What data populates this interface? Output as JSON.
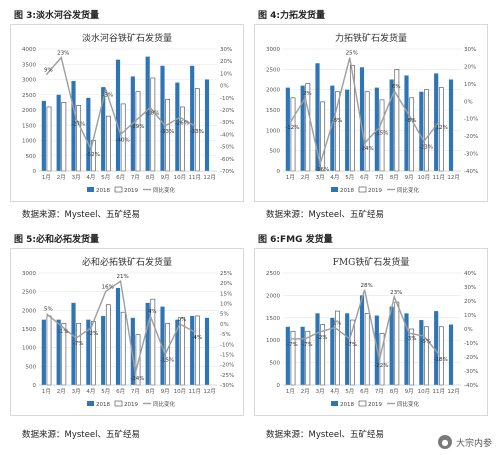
{
  "figures": [
    {
      "figure_title": "图 3:淡水河谷发货量",
      "source": "数据来源：Mysteel、五矿经易"
    },
    {
      "figure_title": "图 4:力拓发货量",
      "source": "数据来源：Mysteel、五矿经易"
    },
    {
      "figure_title": "图 5:必和必拓发货量",
      "source": "数据来源：Mysteel、五矿经易"
    },
    {
      "figure_title": "图 6:FMG 发货量",
      "source": "数据来源：Mysteel、五矿经易"
    }
  ],
  "watermark": {
    "text": "大宗内参",
    "icon": "wechat-icon"
  },
  "colors": {
    "bar2018": "#2e75b6",
    "bar2019": "#ffffff",
    "line": "#9e9e9e",
    "grid": "#e6e6e6"
  },
  "chart_data": [
    {
      "type": "bar",
      "title": "淡水河谷铁矿石发货量",
      "categories": [
        "1月",
        "2月",
        "3月",
        "4月",
        "5月",
        "6月",
        "7月",
        "8月",
        "9月",
        "10月",
        "11月",
        "12月"
      ],
      "ylim": [
        0,
        4000
      ],
      "yticks": [
        0,
        500,
        1000,
        1500,
        2000,
        2500,
        3000,
        3500,
        4000
      ],
      "y2lim": [
        -70,
        30
      ],
      "y2ticks": [
        "30%",
        "20%",
        "10%",
        "0%",
        "-10%",
        "-20%",
        "-30%",
        "-40%",
        "-50%",
        "-60%",
        "-70%"
      ],
      "series": [
        {
          "name": "2018",
          "kind": "bar",
          "values": [
            2300,
            2500,
            2950,
            2400,
            2750,
            3650,
            3100,
            3750,
            3450,
            2900,
            3450,
            3000
          ]
        },
        {
          "name": "2019",
          "kind": "bar",
          "values": [
            2100,
            2250,
            2150,
            1000,
            1800,
            2200,
            2600,
            3050,
            2350,
            2100,
            2700,
            null
          ]
        },
        {
          "name": "同比变化",
          "kind": "line",
          "axis": "right",
          "values": [
            9,
            23,
            -27,
            -52,
            -3,
            -40,
            -29,
            -18,
            -33,
            -26,
            -33,
            null
          ]
        }
      ],
      "data_labels": [
        "9%",
        "23%",
        "-27%",
        "-52%",
        "-3%",
        "-40%",
        "-29%",
        "-18%",
        "-33%",
        "-26%",
        "-33%"
      ],
      "legend": "bottom"
    },
    {
      "type": "bar",
      "title": "力拓铁矿石发货量",
      "categories": [
        "1月",
        "2月",
        "3月",
        "4月",
        "5月",
        "6月",
        "7月",
        "8月",
        "9月",
        "10月",
        "11月",
        "12月"
      ],
      "ylim": [
        0,
        3000
      ],
      "yticks": [
        0,
        500,
        1000,
        1500,
        2000,
        2500,
        3000
      ],
      "y2lim": [
        -40,
        30
      ],
      "y2ticks": [
        "30%",
        "20%",
        "10%",
        "0%",
        "-10%",
        "-20%",
        "-30%",
        "-40%"
      ],
      "series": [
        {
          "name": "2018",
          "kind": "bar",
          "values": [
            2050,
            2100,
            2650,
            2100,
            2000,
            2550,
            2050,
            2250,
            2350,
            1950,
            2400,
            2250
          ]
        },
        {
          "name": "2019",
          "kind": "bar",
          "values": [
            1800,
            2150,
            1700,
            1950,
            2600,
            1950,
            1750,
            2500,
            1800,
            2000,
            2050,
            null
          ]
        },
        {
          "name": "同比变化",
          "kind": "line",
          "axis": "right",
          "values": [
            -12,
            2,
            -36,
            -8,
            25,
            -24,
            -15,
            6,
            -8,
            -23,
            -12,
            null
          ]
        }
      ],
      "data_labels": [
        "-12%",
        "2%",
        "-36%",
        "-8%",
        "25%",
        "-24%",
        "-15%",
        "6%",
        "-8%",
        "-23%",
        "-12%"
      ],
      "legend": "bottom"
    },
    {
      "type": "bar",
      "title": "必和必拓铁矿石发货量",
      "categories": [
        "1月",
        "2月",
        "3月",
        "4月",
        "5月",
        "6月",
        "7月",
        "8月",
        "9月",
        "10月",
        "11月",
        "12月"
      ],
      "ylim": [
        0,
        3000
      ],
      "yticks": [
        0,
        500,
        1000,
        1500,
        2000,
        2500,
        3000
      ],
      "y2lim": [
        -30,
        25
      ],
      "y2ticks": [
        "25%",
        "20%",
        "15%",
        "10%",
        "5%",
        "0%",
        "-5%",
        "-10%",
        "-15%",
        "-20%",
        "-25%",
        "-30%"
      ],
      "series": [
        {
          "name": "2018",
          "kind": "bar",
          "values": [
            1750,
            1750,
            2200,
            1750,
            1850,
            2600,
            1800,
            2200,
            2100,
            1750,
            1850,
            1800
          ]
        },
        {
          "name": "2019",
          "kind": "bar",
          "values": [
            1850,
            1650,
            1650,
            1700,
            2150,
            1950,
            1350,
            2300,
            1650,
            1800,
            1850,
            null
          ]
        },
        {
          "name": "同比变化",
          "kind": "line",
          "axis": "right",
          "values": [
            5,
            -1,
            -7,
            -2,
            16,
            21,
            -24,
            4,
            -15,
            0,
            -4,
            null
          ]
        }
      ],
      "data_labels": [
        "5%",
        "-1%",
        "-7%",
        "-2%",
        "16%",
        "21%",
        "-24%",
        "4%",
        "-15%",
        "0%",
        "-4%"
      ],
      "legend": "bottom"
    },
    {
      "type": "bar",
      "title": "FMG铁矿石发货量",
      "categories": [
        "1月",
        "2月",
        "3月",
        "4月",
        "5月",
        "6月",
        "7月",
        "8月",
        "9月",
        "10月",
        "11月",
        "12月"
      ],
      "ylim": [
        0,
        2500
      ],
      "yticks": [
        0,
        500,
        1000,
        1500,
        2000,
        2500
      ],
      "y2lim": [
        -40,
        40
      ],
      "y2ticks": [
        "40%",
        "30%",
        "20%",
        "10%",
        "0%",
        "-10%",
        "-20%",
        "-30%",
        "-40%"
      ],
      "series": [
        {
          "name": "2018",
          "kind": "bar",
          "values": [
            1300,
            1300,
            1600,
            1500,
            1600,
            2000,
            1550,
            1750,
            1600,
            1450,
            1650,
            1350
          ]
        },
        {
          "name": "2019",
          "kind": "bar",
          "values": [
            1200,
            1200,
            1350,
            1650,
            1450,
            1600,
            1150,
            1850,
            1250,
            1300,
            1300,
            null
          ]
        },
        {
          "name": "同比变化",
          "kind": "line",
          "axis": "right",
          "values": [
            -7,
            -7,
            -2,
            1,
            -7,
            28,
            -22,
            23,
            -3,
            -5,
            -18,
            null
          ]
        }
      ],
      "data_labels": [
        "-7%",
        "-7%",
        "-2%",
        "1%",
        "-7%",
        "28%",
        "-22%",
        "23%",
        "-3%",
        "-5%",
        "-18%"
      ],
      "legend": "bottom"
    }
  ]
}
